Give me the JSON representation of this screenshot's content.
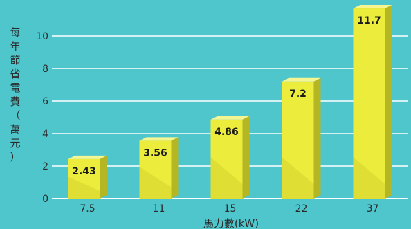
{
  "chart_data": {
    "type": "bar",
    "categories": [
      "7.5",
      "11",
      "15",
      "22",
      "37"
    ],
    "values": [
      2.43,
      3.56,
      4.86,
      7.2,
      11.7
    ],
    "data_labels": [
      "2.43",
      "3.56",
      "4.86",
      "7.2",
      "11.7"
    ],
    "xlabel": "馬力數(kW)",
    "ylabel": "每年節省電費（萬元）",
    "ylim": [
      0,
      12
    ],
    "yticks": [
      0,
      2,
      4,
      6,
      8,
      10
    ],
    "grid": true,
    "colors": {
      "background": "#4fc6cc",
      "gridline": "#ffffff",
      "bar_front": "#ecec3c",
      "bar_front_shade": "#d6d62e",
      "bar_side": "#b5b624",
      "bar_top": "#f5f592",
      "text": "#2a2a2a"
    }
  }
}
